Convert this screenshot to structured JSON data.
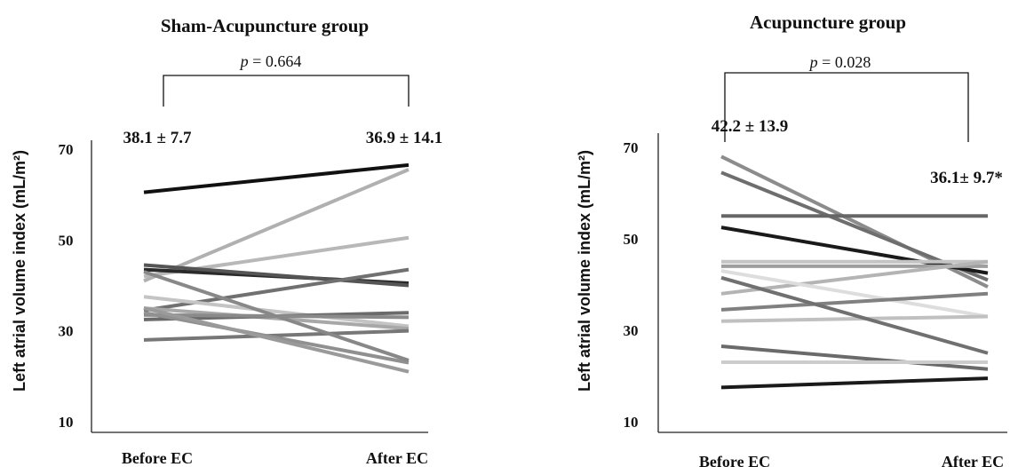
{
  "chart_data": [
    {
      "type": "line",
      "title": "Sham-Acupuncture group",
      "ylabel": "Left atrial volume index (mL/m²)",
      "categories": [
        "Before EC",
        "After EC"
      ],
      "ylim": [
        10,
        70
      ],
      "yticks": [
        "10",
        "30",
        "50",
        "70"
      ],
      "summary": {
        "before": "38.1 ± 7.7",
        "after": "36.9 ± 14.1"
      },
      "comparison": {
        "label": "p",
        "value": "0.664"
      },
      "series": [
        {
          "values": [
            60.5,
            66.5
          ],
          "color": "#111111"
        },
        {
          "values": [
            41,
            65.5
          ],
          "color": "#b0b0b0"
        },
        {
          "values": [
            42,
            50.5
          ],
          "color": "#b8b8b8"
        },
        {
          "values": [
            43.5,
            40.5
          ],
          "color": "#2a2a2a"
        },
        {
          "values": [
            44.5,
            40
          ],
          "color": "#555555"
        },
        {
          "values": [
            34.5,
            43.5
          ],
          "color": "#707070"
        },
        {
          "values": [
            37.5,
            31
          ],
          "color": "#c4c4c4"
        },
        {
          "values": [
            35,
            30.5
          ],
          "color": "#a8a8a8"
        },
        {
          "values": [
            32.5,
            34
          ],
          "color": "#6a6a6a"
        },
        {
          "values": [
            33.5,
            33
          ],
          "color": "#8a8a8a"
        },
        {
          "values": [
            28,
            30
          ],
          "color": "#777777"
        },
        {
          "values": [
            34,
            23
          ],
          "color": "#909090"
        },
        {
          "values": [
            43,
            23.5
          ],
          "color": "#888888"
        },
        {
          "values": [
            35,
            21
          ],
          "color": "#9a9a9a"
        }
      ]
    },
    {
      "type": "line",
      "title": "Acupuncture group",
      "ylabel": "Left atrial volume index (mL/m²)",
      "categories": [
        "Before EC",
        "After EC"
      ],
      "ylim": [
        10,
        70
      ],
      "yticks": [
        "10",
        "30",
        "50",
        "70"
      ],
      "summary": {
        "before": "42.2 ± 13.9",
        "after": "36.1± 9.7*"
      },
      "comparison": {
        "label": "p",
        "value": "0.028"
      },
      "series": [
        {
          "values": [
            68,
            39.5
          ],
          "color": "#8c8c8c"
        },
        {
          "values": [
            64.5,
            41
          ],
          "color": "#6e6e6e"
        },
        {
          "values": [
            55,
            55
          ],
          "color": "#666666"
        },
        {
          "values": [
            52.5,
            42.5
          ],
          "color": "#1a1a1a"
        },
        {
          "values": [
            45,
            45
          ],
          "color": "#c4c4c4"
        },
        {
          "values": [
            44,
            44
          ],
          "color": "#9e9e9e"
        },
        {
          "values": [
            38,
            45
          ],
          "color": "#b4b4b4"
        },
        {
          "values": [
            43,
            33
          ],
          "color": "#dddddd"
        },
        {
          "values": [
            34.5,
            38
          ],
          "color": "#808080"
        },
        {
          "values": [
            32,
            33
          ],
          "color": "#c0c0c0"
        },
        {
          "values": [
            41.5,
            25
          ],
          "color": "#707070"
        },
        {
          "values": [
            26.5,
            21.5
          ],
          "color": "#6a6a6a"
        },
        {
          "values": [
            23,
            23
          ],
          "color": "#cccccc"
        },
        {
          "values": [
            17.5,
            19.5
          ],
          "color": "#1a1a1a"
        }
      ]
    }
  ]
}
